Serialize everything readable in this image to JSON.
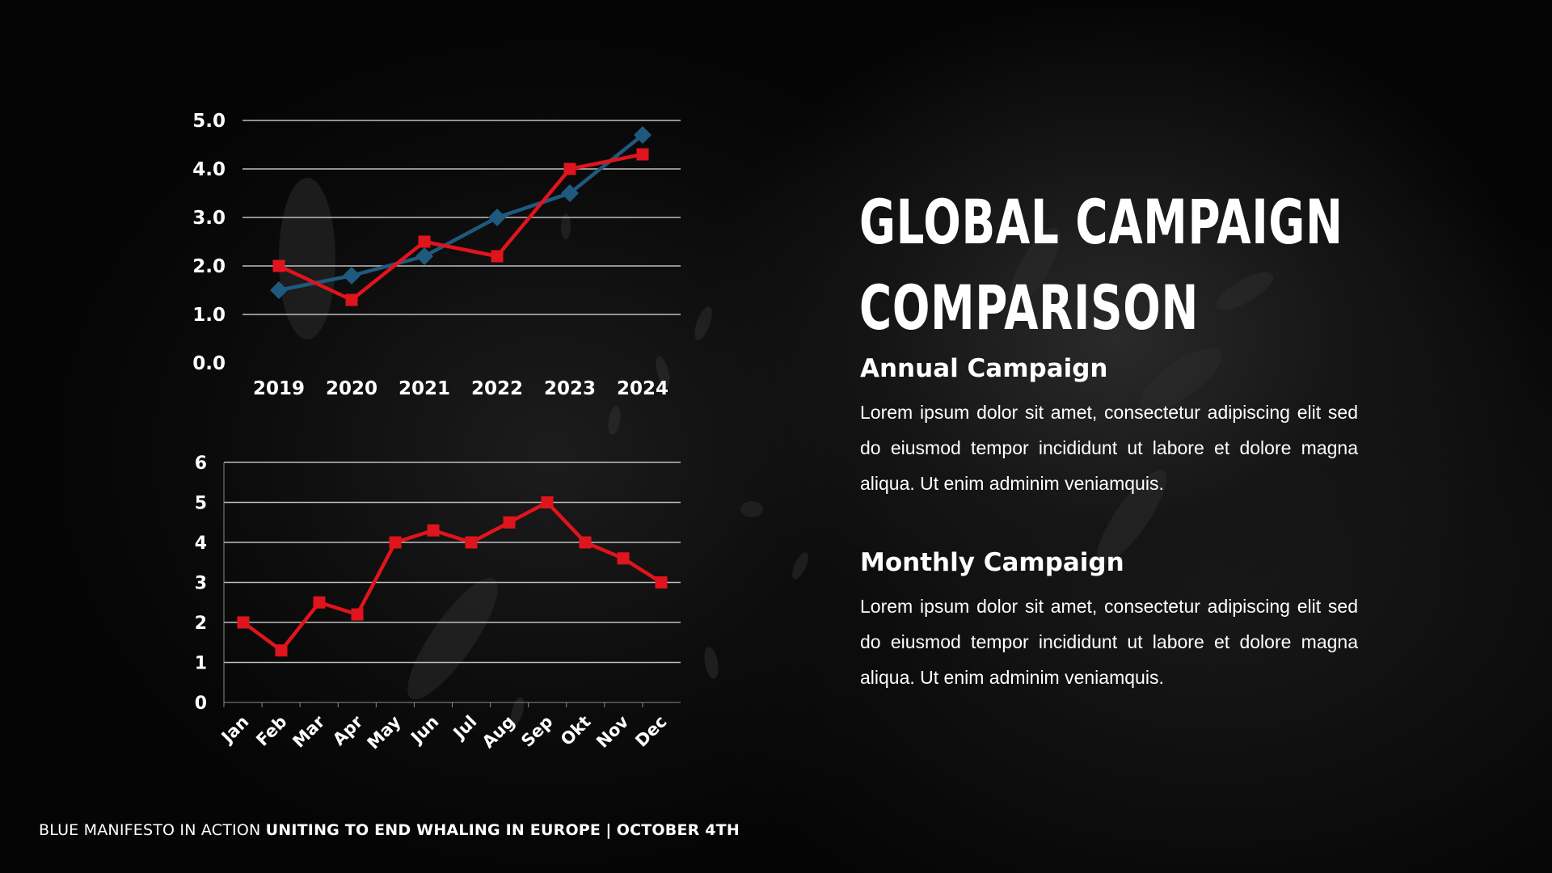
{
  "slide": {
    "title_line1": "Global Campaign",
    "title_line2": "Comparison",
    "annual": {
      "heading": "Annual Campaign",
      "body": "Lorem ipsum dolor sit amet, consectetur adipiscing elit sed do eiusmod tempor incididunt ut labore et dolore magna aliqua. Ut enim adminim veniamquis."
    },
    "monthly": {
      "heading": "Monthly Campaign",
      "body": "Lorem ipsum dolor sit amet, consectetur adipiscing elit sed do eiusmod tempor incididunt ut labore et dolore magna aliqua. Ut enim adminim veniamquis."
    },
    "footer": {
      "light": "BLUE MANIFESTO IN ACTION",
      "bold": "UNITING TO END WHALING IN EUROPE",
      "separator": "|",
      "date": "OCTOBER 4TH"
    }
  },
  "chart_data": [
    {
      "type": "line",
      "categories": [
        "2019",
        "2020",
        "2021",
        "2022",
        "2023",
        "2024"
      ],
      "series": [
        {
          "values": [
            1.5,
            1.8,
            2.2,
            3.0,
            3.5,
            4.7
          ],
          "color": "#1f5a7e",
          "marker": "diamond"
        },
        {
          "values": [
            2.0,
            1.3,
            2.5,
            2.2,
            4.0,
            4.3
          ],
          "color": "#e0141c",
          "marker": "square"
        }
      ],
      "yticks": [
        "0.0",
        "1.0",
        "2.0",
        "3.0",
        "4.0",
        "5.0"
      ],
      "ylim": [
        0,
        5
      ],
      "grid": true
    },
    {
      "type": "line",
      "categories": [
        "Jan",
        "Feb",
        "Mar",
        "Apr",
        "May",
        "Jun",
        "Jul",
        "Aug",
        "Sep",
        "Okt",
        "Nov",
        "Dec"
      ],
      "series": [
        {
          "values": [
            2.0,
            1.3,
            2.5,
            2.2,
            4.0,
            4.3,
            4.0,
            4.5,
            5.0,
            4.0,
            3.6,
            3.0
          ],
          "color": "#e0141c",
          "marker": "square"
        }
      ],
      "yticks": [
        "0",
        "1",
        "2",
        "3",
        "4",
        "5",
        "6"
      ],
      "ylim": [
        0,
        6
      ],
      "grid": true
    }
  ]
}
